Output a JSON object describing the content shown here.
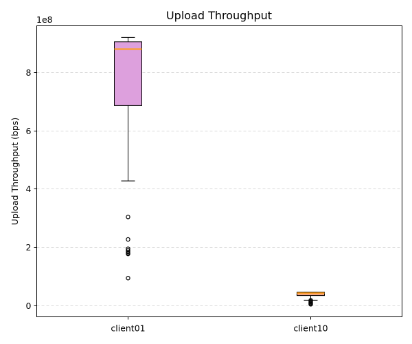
{
  "chart_data": {
    "type": "box",
    "title": "Upload Throughput",
    "xlabel": "",
    "ylabel": "Upload Throughput (bps)",
    "y_offset_label": "1e8",
    "y_scale_factor": 100000000,
    "ylim": [
      -40000000,
      960000000
    ],
    "yticks": [
      0,
      200000000,
      400000000,
      600000000,
      800000000
    ],
    "ytick_labels": [
      "0",
      "2",
      "4",
      "6",
      "8"
    ],
    "grid": "y, dashed",
    "categories": [
      "client01",
      "client10"
    ],
    "boxes": [
      {
        "name": "client01",
        "whisker_low": 427000000,
        "q1": 686000000,
        "median": 880000000,
        "q3": 905000000,
        "whisker_high": 920000000,
        "outliers": [
          303000000,
          226000000,
          194000000,
          188000000,
          183000000,
          179000000,
          176000000,
          93000000
        ],
        "fill": "#dda0dd"
      },
      {
        "name": "client10",
        "whisker_low": 17000000,
        "q1": 33000000,
        "median": 42000000,
        "q3": 45000000,
        "whisker_high": 45000000,
        "outliers": [
          17000000,
          14000000,
          11000000,
          8000000,
          5000000,
          3000000
        ],
        "fill": "#f4a582"
      }
    ],
    "colors": {
      "median": "#ff9f1c",
      "grid": "#cccccc"
    }
  }
}
